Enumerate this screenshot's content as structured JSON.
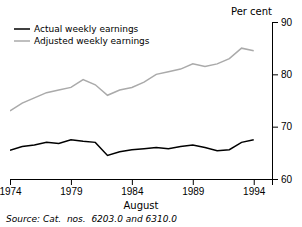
{
  "chart_data": {
    "type": "line",
    "xlabel": "August",
    "ylabel": "Per cent",
    "x": [
      1974,
      1975,
      1976,
      1977,
      1978,
      1979,
      1980,
      1981,
      1982,
      1983,
      1984,
      1985,
      1986,
      1987,
      1988,
      1989,
      1990,
      1991,
      1992,
      1993,
      1994
    ],
    "series": [
      {
        "name": "Actual weekly earnings",
        "color": "#000000",
        "values": [
          65.5,
          66.2,
          66.5,
          67.0,
          66.8,
          67.5,
          67.2,
          67.0,
          64.5,
          65.2,
          65.6,
          65.8,
          66.0,
          65.8,
          66.2,
          66.5,
          66.0,
          65.4,
          65.6,
          67.0,
          67.5
        ]
      },
      {
        "name": "Adjusted weekly earnings",
        "color": "#aaaaaa",
        "values": [
          73.0,
          74.5,
          75.5,
          76.5,
          77.0,
          77.5,
          79.0,
          78.0,
          76.0,
          77.0,
          77.5,
          78.5,
          80.0,
          80.5,
          81.0,
          82.0,
          81.5,
          82.0,
          83.0,
          85.0,
          84.5
        ]
      }
    ],
    "xlim": [
      1974,
      1995.5
    ],
    "xticks": [
      1974,
      1979,
      1984,
      1989,
      1994
    ],
    "ylim": [
      60,
      90
    ],
    "yticks": [
      60,
      70,
      80,
      90
    ],
    "grid": false,
    "legend": "upper left",
    "annotations": [
      "Source: Cat.  nos.  6203.0 and 6310.0"
    ]
  }
}
